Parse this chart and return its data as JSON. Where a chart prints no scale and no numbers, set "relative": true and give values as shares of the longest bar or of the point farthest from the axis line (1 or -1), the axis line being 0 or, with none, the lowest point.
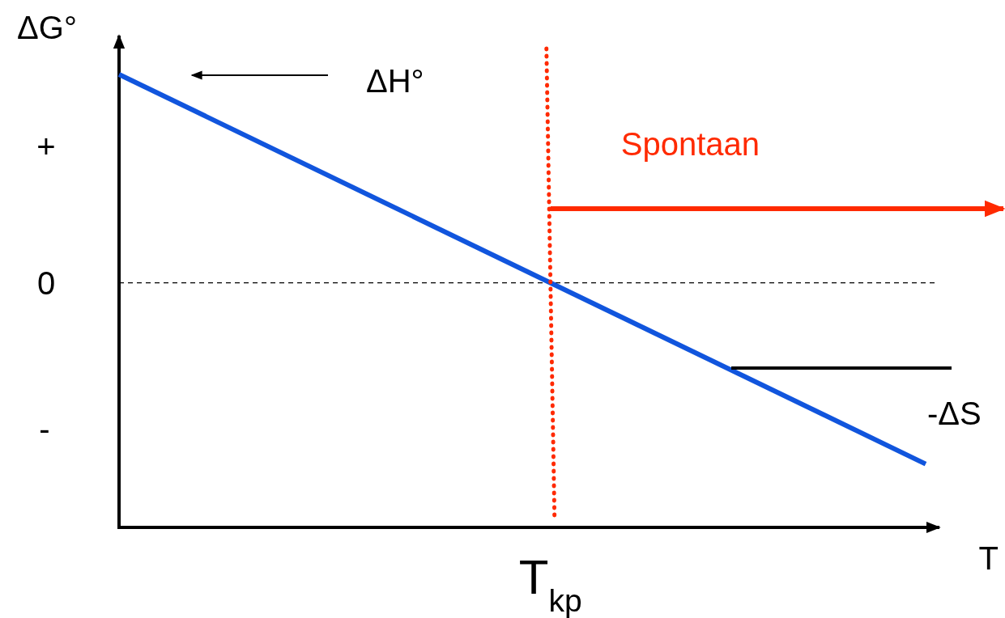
{
  "chart_data": {
    "type": "line",
    "ylabel": "ΔG°",
    "xlabel": "T",
    "categories": [
      null,
      null
    ],
    "series": [
      {
        "color": "#1155dd",
        "values": [
          1,
          0.14
        ]
      }
    ],
    "relative": true,
    "ref_lines": [
      {
        "axis": "y",
        "value": 0.54,
        "color": "#000000",
        "line_style": "dashed"
      }
    ],
    "annotations": [
      "ΔH°",
      "Spontaan",
      "-ΔS",
      "T$_{kp}$",
      "+",
      "0",
      "-"
    ],
    "marker": "none",
    "line_style": "solid"
  }
}
